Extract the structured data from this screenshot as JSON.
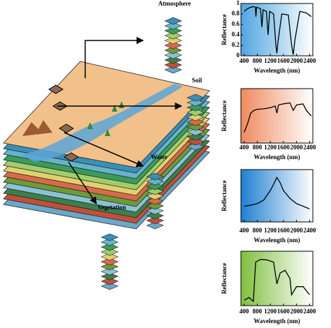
{
  "diagram": {
    "labels": [
      "Atmosphere",
      "Soil",
      "Water",
      "Vegetation"
    ]
  },
  "chart_data": [
    {
      "type": "line",
      "ylabel": "Reflectance",
      "xlabel": "Wavelength (nm)",
      "background": "#4fa6e0",
      "color": "#000000",
      "x": [
        400,
        500,
        600,
        700,
        740,
        760,
        780,
        900,
        940,
        980,
        1080,
        1130,
        1180,
        1300,
        1370,
        1400,
        1430,
        1550,
        1750,
        1850,
        1900,
        1950,
        2100,
        2300,
        2450
      ],
      "values": [
        0.85,
        0.9,
        0.93,
        0.94,
        0.93,
        0.75,
        0.93,
        0.9,
        0.55,
        0.88,
        0.85,
        0.4,
        0.85,
        0.8,
        0.2,
        0.05,
        0.25,
        0.8,
        0.78,
        0.2,
        0.02,
        0.3,
        0.85,
        0.82,
        0.75
      ],
      "xlim": [
        300,
        2500
      ],
      "ylim": [
        0,
        1
      ],
      "xticks": [
        400,
        800,
        1200,
        1600,
        2000,
        2400
      ],
      "yticks": [
        0,
        0.2,
        0.4,
        0.6,
        0.8,
        1
      ]
    },
    {
      "type": "line",
      "ylabel": "Reflectance",
      "xlabel": "Wavelength (nm)",
      "background": "#ee8a5e",
      "color": "#000000",
      "x": [
        400,
        500,
        600,
        700,
        800,
        1000,
        1200,
        1350,
        1400,
        1450,
        1600,
        1800,
        1900,
        2000,
        2200,
        2300,
        2450
      ],
      "values": [
        0.2,
        0.35,
        0.55,
        0.6,
        0.62,
        0.63,
        0.65,
        0.68,
        0.55,
        0.7,
        0.72,
        0.74,
        0.6,
        0.7,
        0.72,
        0.6,
        0.5
      ],
      "xlim": [
        300,
        2500
      ],
      "ylim": [
        0,
        1
      ],
      "xticks": [
        400,
        800,
        1200,
        1600,
        2000,
        2400
      ]
    },
    {
      "type": "line",
      "ylabel": "Reflectance",
      "xlabel": "Wavelength (nm)",
      "background": "#1f7fd0",
      "color": "#000000",
      "x": [
        400,
        600,
        800,
        1000,
        1200,
        1300,
        1400,
        1500,
        1600,
        1800,
        2000,
        2200,
        2400
      ],
      "values": [
        0.3,
        0.32,
        0.35,
        0.42,
        0.6,
        0.72,
        0.85,
        0.75,
        0.6,
        0.45,
        0.35,
        0.3,
        0.25
      ],
      "xlim": [
        300,
        2500
      ],
      "ylim": [
        0,
        1
      ],
      "xticks": [
        400,
        800,
        1200,
        1600,
        2000,
        2400
      ]
    },
    {
      "type": "line",
      "ylabel": "Reflectance",
      "xlabel": "Wavelength (nm)",
      "background": "#7fbf3f",
      "color": "#000000",
      "x": [
        400,
        550,
        680,
        720,
        750,
        900,
        1100,
        1300,
        1400,
        1500,
        1650,
        1800,
        1850,
        2000,
        2200,
        2400
      ],
      "values": [
        0.1,
        0.15,
        0.08,
        0.5,
        0.8,
        0.85,
        0.84,
        0.8,
        0.4,
        0.6,
        0.65,
        0.5,
        0.2,
        0.35,
        0.35,
        0.2
      ],
      "xlim": [
        300,
        2500
      ],
      "ylim": [
        0,
        1
      ],
      "xticks": [
        400,
        800,
        1200,
        1600,
        2000,
        2400
      ]
    }
  ]
}
